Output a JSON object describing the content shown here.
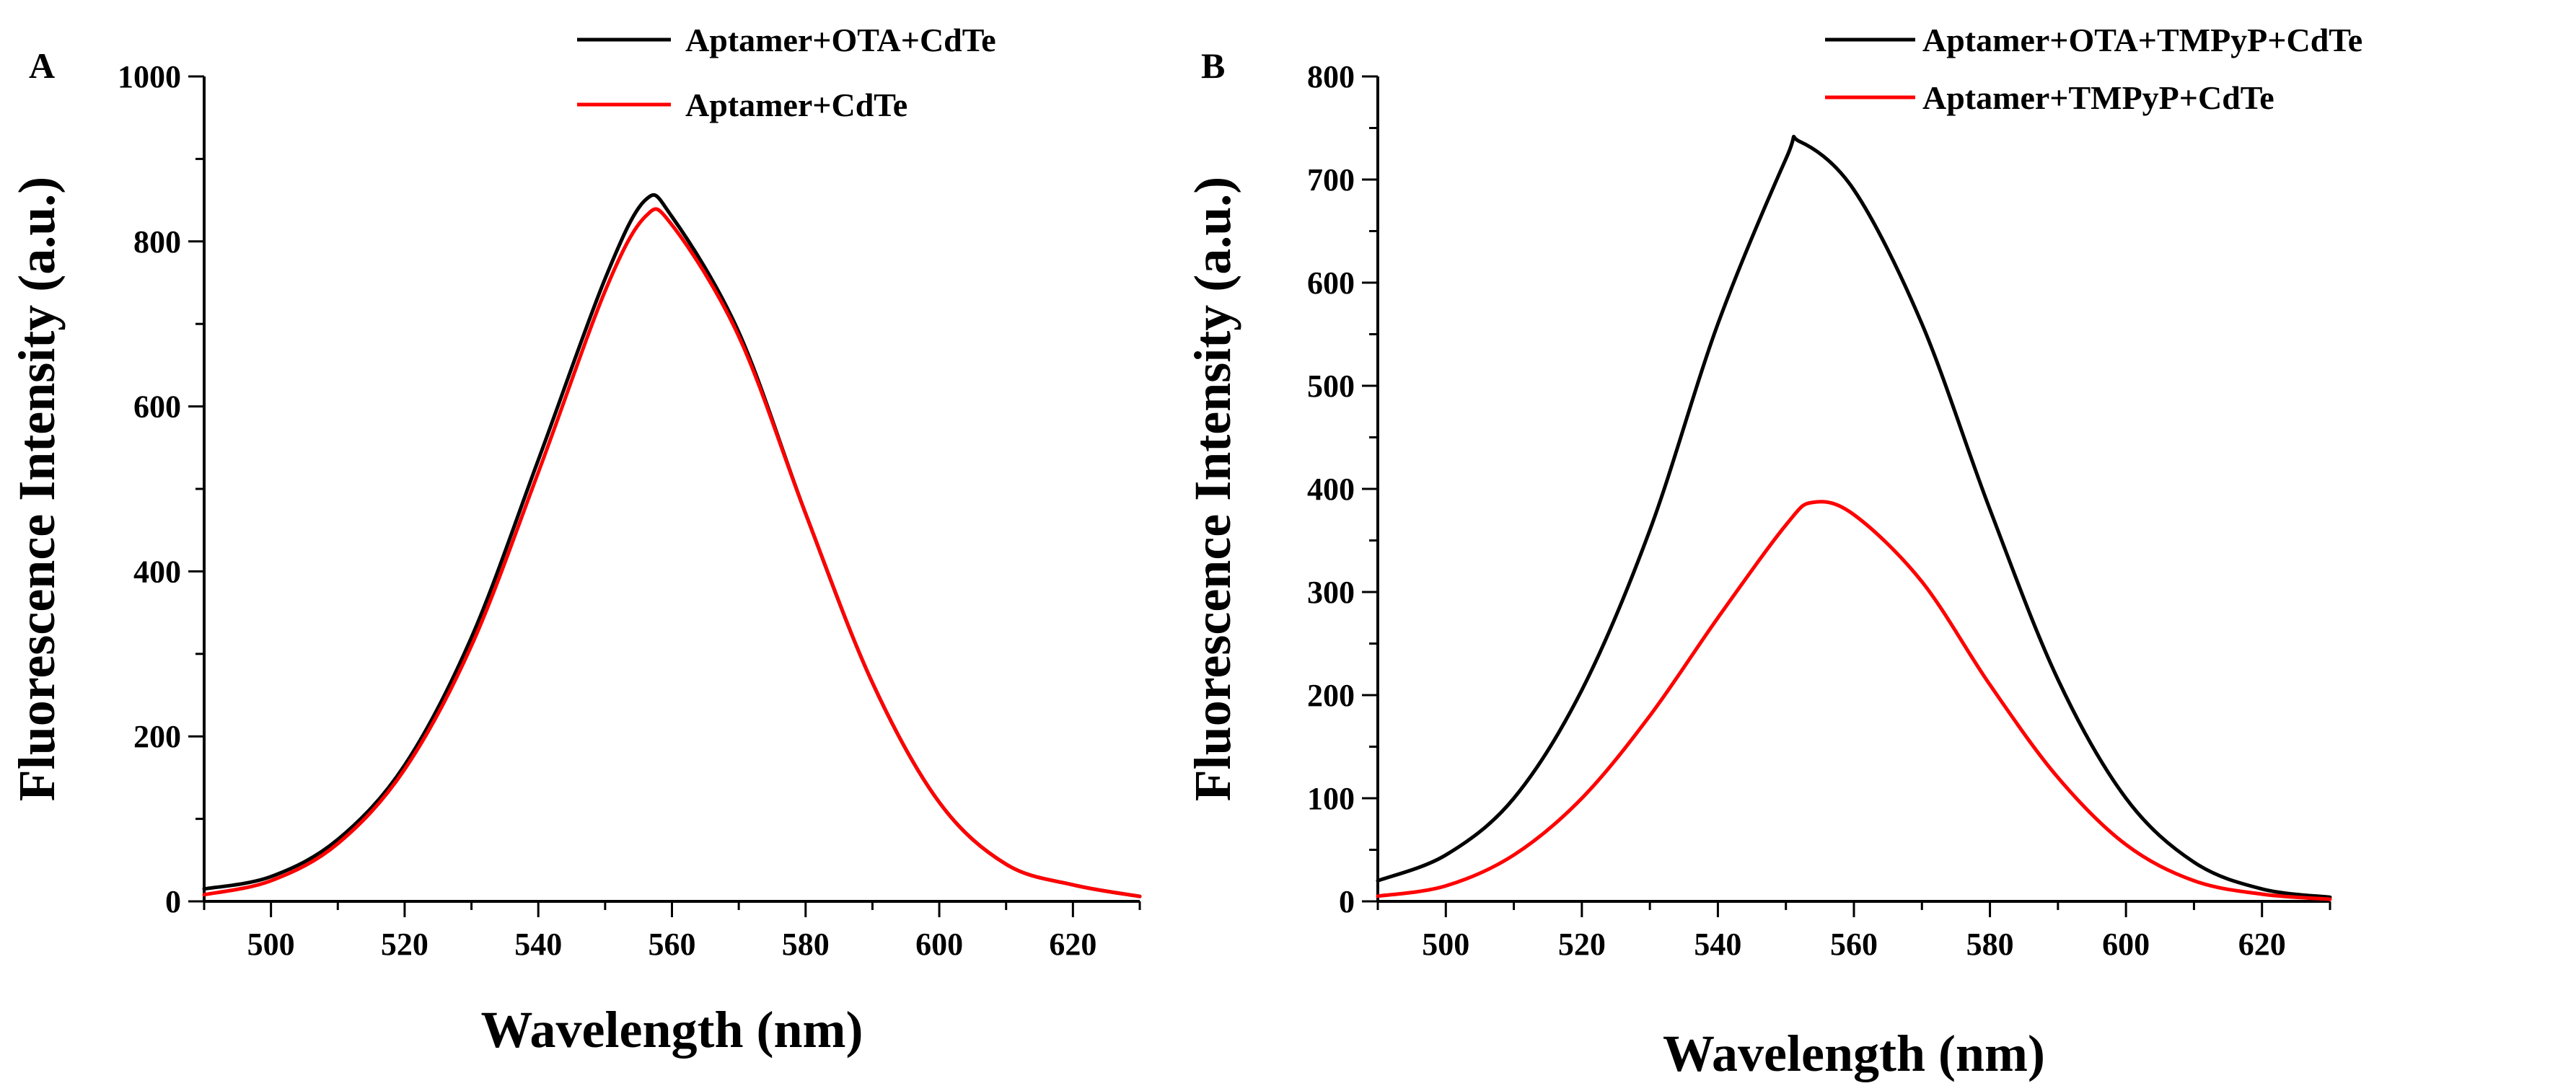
{
  "chart_data": [
    {
      "type": "line",
      "panel_label": "A",
      "title": "",
      "xlabel": "Wavelength (nm)",
      "ylabel": "Fluorescence Intensity (a.u.)",
      "xlim": [
        490,
        630
      ],
      "ylim": [
        0,
        1000
      ],
      "xticks": [
        500,
        520,
        540,
        560,
        580,
        600,
        620
      ],
      "yticks": [
        0,
        200,
        400,
        600,
        800,
        1000
      ],
      "grid": false,
      "legend_position": "top-right",
      "series": [
        {
          "name": "Aptamer+OTA+CdTe",
          "color": "#000000",
          "x": [
            490,
            500,
            510,
            520,
            530,
            540,
            550,
            556,
            560,
            570,
            580,
            590,
            600,
            610,
            620,
            630
          ],
          "y": [
            15,
            30,
            75,
            165,
            320,
            535,
            755,
            850,
            830,
            690,
            470,
            265,
            120,
            45,
            20,
            6
          ]
        },
        {
          "name": "Aptamer+CdTe",
          "color": "#ff0000",
          "x": [
            490,
            500,
            510,
            520,
            530,
            540,
            550,
            556,
            560,
            570,
            580,
            590,
            600,
            610,
            620,
            630
          ],
          "y": [
            8,
            25,
            70,
            160,
            310,
            520,
            740,
            830,
            820,
            685,
            470,
            265,
            120,
            45,
            20,
            6
          ]
        }
      ]
    },
    {
      "type": "line",
      "panel_label": "B",
      "title": "",
      "xlabel": "Wavelength (nm)",
      "ylabel": "Fluorescence Intensity (a.u.)",
      "xlim": [
        490,
        630
      ],
      "ylim": [
        0,
        800
      ],
      "xticks": [
        500,
        520,
        540,
        560,
        580,
        600,
        620
      ],
      "yticks": [
        0,
        100,
        200,
        300,
        400,
        500,
        600,
        700,
        800
      ],
      "grid": false,
      "legend_position": "top-right",
      "series": [
        {
          "name": "Aptamer+OTA+TMPyP+CdTe",
          "color": "#000000",
          "x": [
            490,
            500,
            510,
            520,
            530,
            540,
            550,
            552,
            560,
            570,
            580,
            590,
            600,
            610,
            620,
            630
          ],
          "y": [
            20,
            45,
            100,
            205,
            360,
            560,
            720,
            737,
            690,
            560,
            380,
            215,
            100,
            38,
            12,
            4
          ]
        },
        {
          "name": "Aptamer+TMPyP+CdTe",
          "color": "#ff0000",
          "x": [
            490,
            500,
            510,
            520,
            530,
            540,
            550,
            554,
            560,
            570,
            580,
            590,
            600,
            610,
            620,
            630
          ],
          "y": [
            5,
            15,
            45,
            100,
            180,
            275,
            365,
            387,
            375,
            310,
            210,
            120,
            55,
            20,
            7,
            2
          ]
        }
      ]
    }
  ]
}
